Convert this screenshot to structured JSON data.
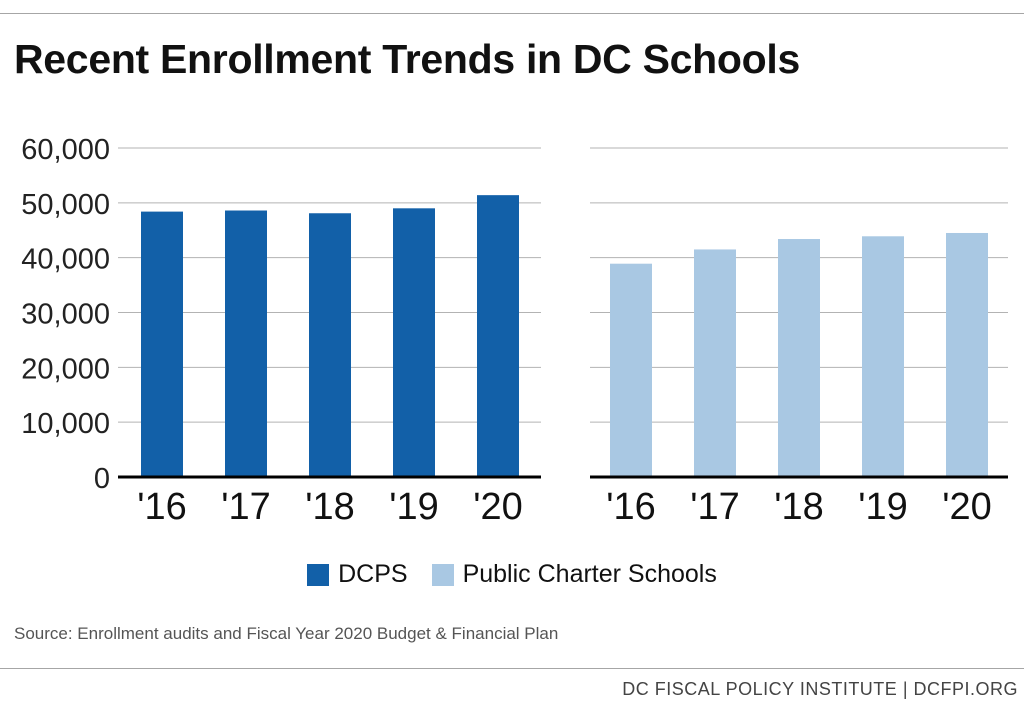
{
  "title": "Recent Enrollment Trends in DC Schools",
  "source": "Source: Enrollment audits and Fiscal Year 2020 Budget & Financial Plan",
  "footer": "DC FISCAL POLICY INSTITUTE | DCFPI.ORG",
  "legend": [
    {
      "label": "DCPS",
      "color": "#1260a8"
    },
    {
      "label": "Public Charter Schools",
      "color": "#a9c8e3"
    }
  ],
  "chart_data": [
    {
      "type": "bar",
      "categories": [
        "'16",
        "'17",
        "'18",
        "'19",
        "'20"
      ],
      "series": [
        {
          "name": "DCPS",
          "values": [
            48400,
            48600,
            48100,
            49000,
            51400
          ],
          "color": "#1260a8"
        }
      ],
      "ylim": [
        0,
        60000
      ],
      "yticks": [
        "0",
        "10,000",
        "20,000",
        "30,000",
        "40,000",
        "50,000",
        "60,000"
      ],
      "grid": true
    },
    {
      "type": "bar",
      "categories": [
        "'16",
        "'17",
        "'18",
        "'19",
        "'20"
      ],
      "series": [
        {
          "name": "Public Charter Schools",
          "values": [
            38900,
            41500,
            43400,
            43900,
            44500
          ],
          "color": "#a9c8e3"
        }
      ],
      "ylim": [
        0,
        60000
      ],
      "grid": true
    }
  ]
}
